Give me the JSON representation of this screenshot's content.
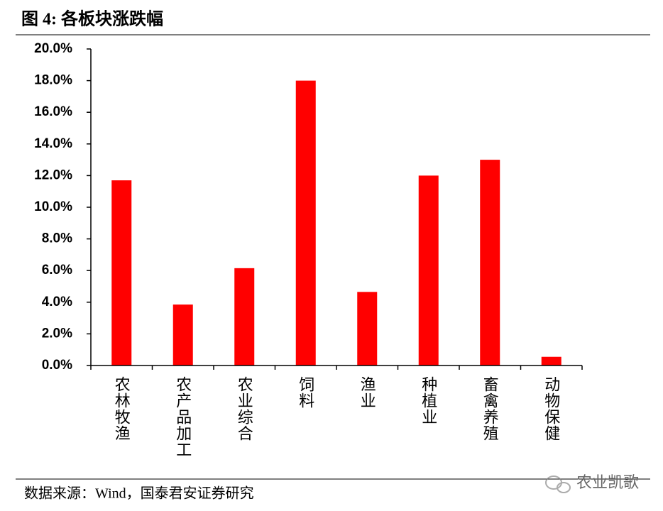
{
  "chart_data": {
    "type": "bar",
    "title": "图 4:  各板块涨跌幅",
    "categories": [
      "农林牧渔",
      "农产品加工",
      "农业综合",
      "饲料",
      "渔业",
      "种植业",
      "畜禽养殖",
      "动物保健"
    ],
    "values": [
      11.7,
      3.85,
      6.15,
      18.0,
      4.65,
      12.0,
      13.0,
      0.55
    ],
    "color": "#ff0000",
    "ylim": [
      0,
      20
    ],
    "yticks": [
      {
        "value": 0,
        "label": "0.0%"
      },
      {
        "value": 2,
        "label": "2.0%"
      },
      {
        "value": 4,
        "label": "4.0%"
      },
      {
        "value": 6,
        "label": "6.0%"
      },
      {
        "value": 8,
        "label": "8.0%"
      },
      {
        "value": 10,
        "label": "10.0%"
      },
      {
        "value": 12,
        "label": "12.0%"
      },
      {
        "value": 14,
        "label": "14.0%"
      },
      {
        "value": 16,
        "label": "16.0%"
      },
      {
        "value": 18,
        "label": "18.0%"
      },
      {
        "value": 20,
        "label": "20.0%"
      }
    ],
    "source": "数据来源：Wind，国泰君安证券研究",
    "watermark": "农业凯歌"
  }
}
